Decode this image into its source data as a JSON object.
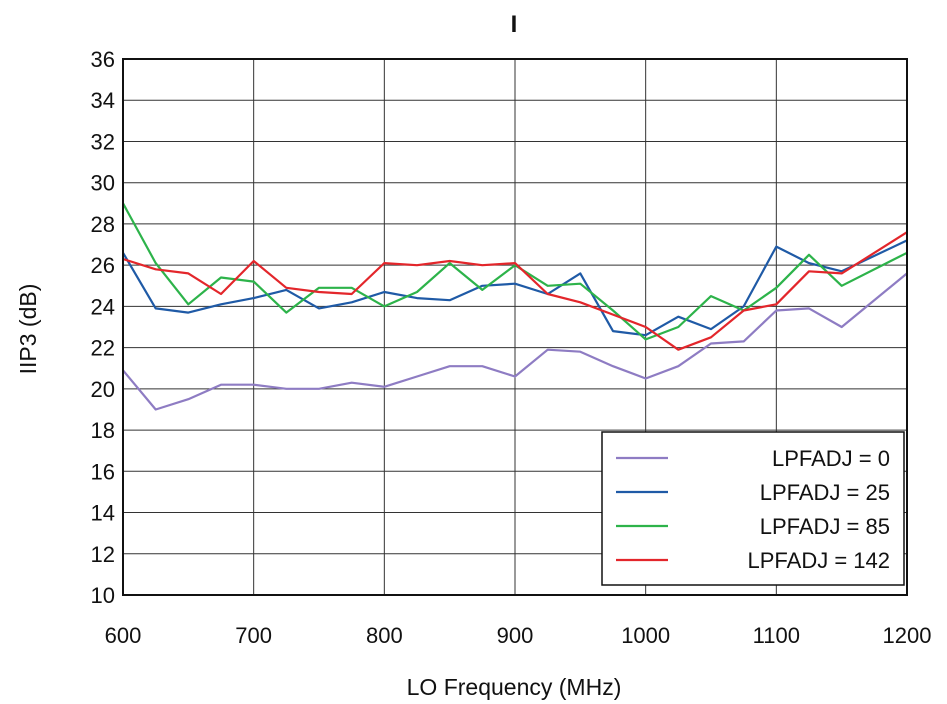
{
  "chart_data": {
    "type": "line",
    "title": "I",
    "xlabel": "LO Frequency (MHz)",
    "ylabel": "IIP3 (dB)",
    "xlim": [
      600,
      1200
    ],
    "ylim": [
      10,
      36
    ],
    "xticks": [
      600,
      700,
      800,
      900,
      1000,
      1100,
      1200
    ],
    "yticks": [
      10,
      12,
      14,
      16,
      18,
      20,
      22,
      24,
      26,
      28,
      30,
      32,
      34,
      36
    ],
    "grid": true,
    "legend_position": "bottom-right",
    "x": [
      600,
      625,
      650,
      675,
      700,
      725,
      750,
      775,
      800,
      825,
      850,
      875,
      900,
      925,
      950,
      975,
      1000,
      1025,
      1050,
      1075,
      1100,
      1125,
      1150,
      1200
    ],
    "series": [
      {
        "name": "LPFADJ = 0",
        "color": "#8e7cc3",
        "values": [
          20.9,
          19.0,
          19.5,
          20.2,
          20.2,
          20.0,
          20.0,
          20.3,
          20.1,
          20.6,
          21.1,
          21.1,
          20.6,
          21.9,
          21.8,
          21.1,
          20.5,
          21.1,
          22.2,
          22.3,
          23.8,
          23.9,
          23.0,
          25.6
        ]
      },
      {
        "name": "LPFADJ = 25",
        "color": "#1f5aa6",
        "values": [
          26.6,
          23.9,
          23.7,
          24.1,
          24.4,
          24.8,
          23.9,
          24.2,
          24.7,
          24.4,
          24.3,
          25.0,
          25.1,
          24.6,
          25.6,
          22.8,
          22.6,
          23.5,
          22.9,
          24.0,
          26.9,
          26.1,
          25.7,
          27.2
        ]
      },
      {
        "name": "LPFADJ = 85",
        "color": "#2db34a",
        "values": [
          29.0,
          26.1,
          24.1,
          25.4,
          25.2,
          23.7,
          24.9,
          24.9,
          24.0,
          24.7,
          26.1,
          24.8,
          26.0,
          25.0,
          25.1,
          23.8,
          22.4,
          23.0,
          24.5,
          23.8,
          24.9,
          26.5,
          25.0,
          26.6
        ]
      },
      {
        "name": "LPFADJ = 142",
        "color": "#e3262b",
        "values": [
          26.3,
          25.8,
          25.6,
          24.6,
          26.2,
          24.9,
          24.7,
          24.6,
          26.1,
          26.0,
          26.2,
          26.0,
          26.1,
          24.6,
          24.2,
          23.6,
          23.0,
          21.9,
          22.5,
          23.8,
          24.1,
          25.7,
          25.6,
          27.6
        ]
      }
    ]
  }
}
